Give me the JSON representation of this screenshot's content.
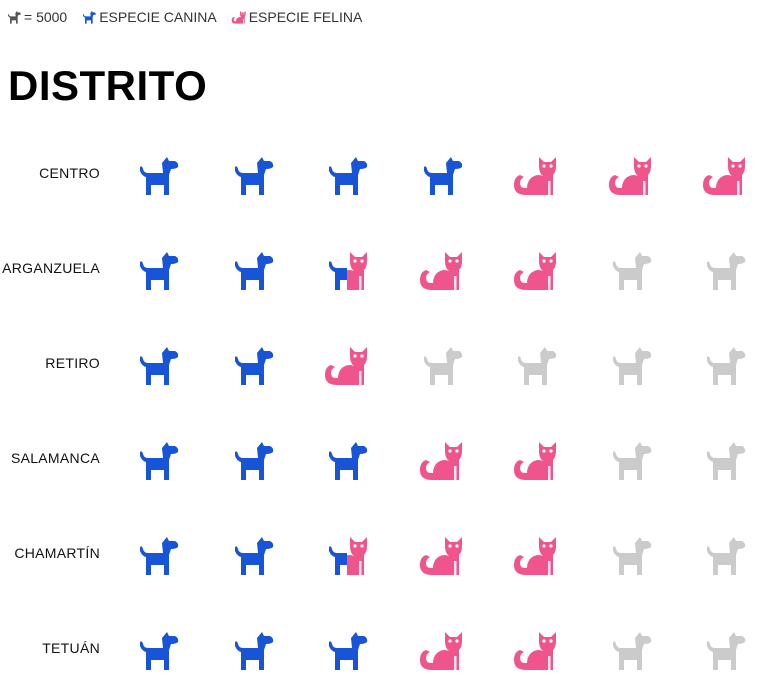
{
  "legend": {
    "unit_label": "= 5000",
    "unit_value": 5000,
    "dog_label": "ESPECIE CANINA",
    "cat_label": "ESPECIE FELINA"
  },
  "colors": {
    "dog": "#1754d6",
    "cat": "#f0548c",
    "empty": "#cbcbcb",
    "unit_icon": "#555555"
  },
  "icons": {
    "dog": "dog-icon",
    "cat": "cat-icon"
  },
  "chart_data": {
    "type": "pictogram",
    "title": "DISTRITO",
    "unit": 5000,
    "icons_per_row": 7,
    "series": [
      {
        "name": "ESPECIE CANINA",
        "values": [
          20000,
          12500,
          10000,
          15000,
          12500,
          15000
        ]
      },
      {
        "name": "ESPECIE FELINA",
        "values": [
          15000,
          10000,
          5000,
          10000,
          10000,
          10000
        ]
      }
    ],
    "categories": [
      "CENTRO",
      "ARGANZUELA",
      "RETIRO",
      "SALAMANCA",
      "CHAMARTÍN",
      "TETUÁN"
    ]
  }
}
